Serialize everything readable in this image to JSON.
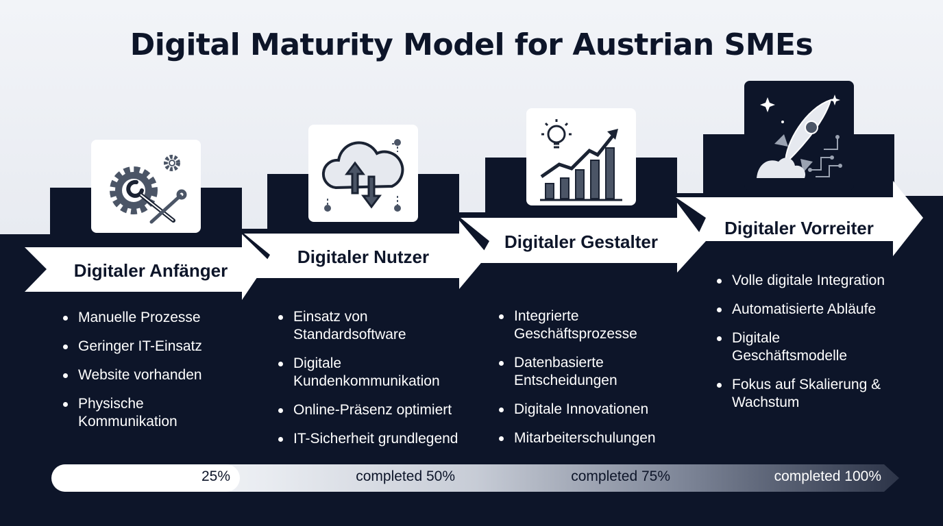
{
  "title": "Digital Maturity Model for Austrian SMEs",
  "stages": [
    {
      "name": "Digitaler Anfänger",
      "icon": "gear-wrench-icon",
      "items": [
        "Manuelle Prozesse",
        "Geringer IT-Einsatz",
        "Website vorhanden",
        "Physische Kommunikation"
      ]
    },
    {
      "name": "Digitaler Nutzer",
      "icon": "cloud-sync-icon",
      "items": [
        "Einsatz von Standardsoftware",
        "Digitale Kundenkommunikation",
        "Online-Präsenz optimiert",
        "IT-Sicherheit grundlegend"
      ]
    },
    {
      "name": "Digitaler Gestalter",
      "icon": "lightbulb-growth-chart-icon",
      "items": [
        "Integrierte Geschäftsprozesse",
        "Datenbasierte Entscheidungen",
        "Digitale Innovationen",
        "Mitarbeiterschulungen"
      ]
    },
    {
      "name": "Digitaler Vorreiter",
      "icon": "rocket-icon",
      "items": [
        "Volle digitale Integration",
        "Automatisierte Abläufe",
        "Digitale Geschäftsmodelle",
        "Fokus auf Skalierung & Wachstum"
      ]
    }
  ],
  "progress": {
    "segments": [
      {
        "label": "25%",
        "value": 0.25
      },
      {
        "label": "completed 50%",
        "value": 0.5
      },
      {
        "label": "completed 75%",
        "value": 0.75
      },
      {
        "label": "completed 100%",
        "value": 1.0
      }
    ]
  },
  "colors": {
    "dark": "#0d1529",
    "light": "#eef1f6",
    "white": "#ffffff",
    "icon_gray": "#4b5566"
  }
}
